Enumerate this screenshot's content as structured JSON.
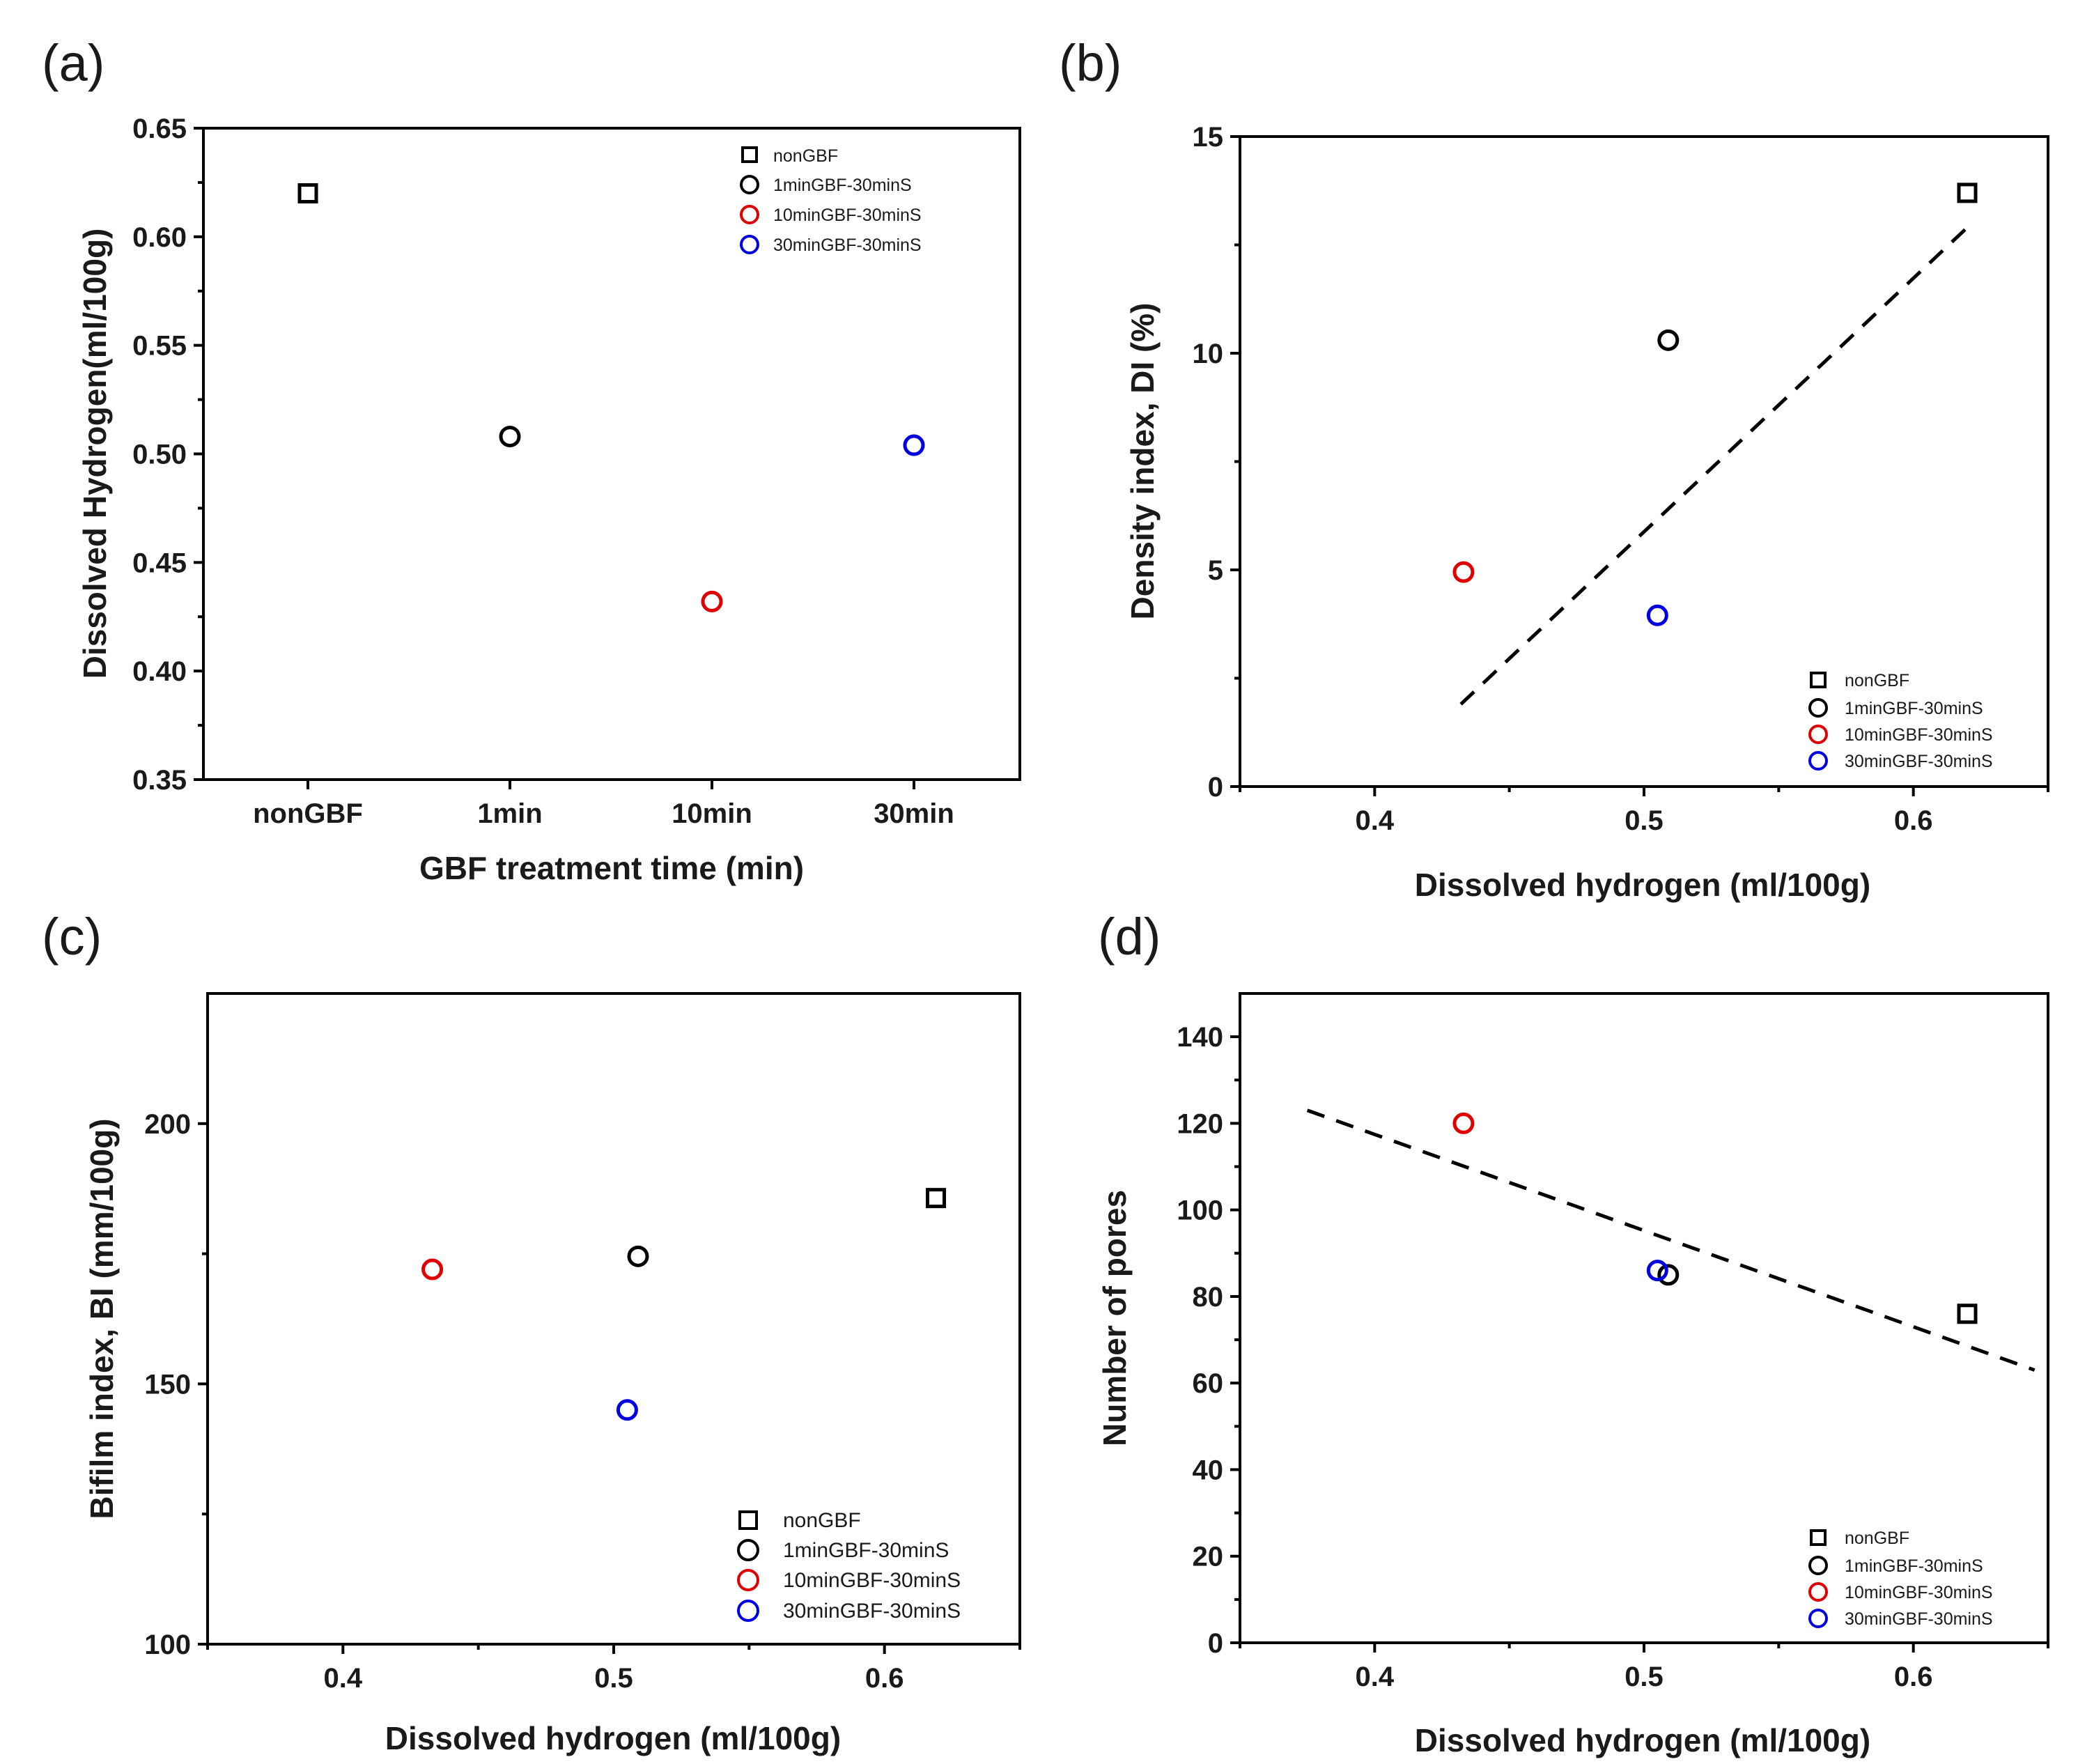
{
  "colors": {
    "nonGBF": "#000000",
    "m1": "#000000",
    "m10": "#e00000",
    "m30": "#0000e0",
    "fit": "#000000"
  },
  "chart_data": [
    {
      "panel": "(a)",
      "type": "scatter",
      "xlabel": "GBF treatment time (min)",
      "ylabel": "Dissolved Hydrogen(ml/100g)",
      "categories": [
        "nonGBF",
        "1min",
        "10min",
        "30min"
      ],
      "ylim": [
        0.35,
        0.65
      ],
      "yticks": [
        "0.35",
        "0.40",
        "0.45",
        "0.50",
        "0.55",
        "0.60",
        "0.65"
      ],
      "legend_position": "top-right",
      "series": [
        {
          "name": "nonGBF",
          "marker": "square",
          "colorKey": "nonGBF",
          "points": [
            {
              "x": "nonGBF",
              "y": 0.62
            }
          ]
        },
        {
          "name": "1minGBF-30minS",
          "marker": "circle",
          "colorKey": "m1",
          "points": [
            {
              "x": "1min",
              "y": 0.508
            }
          ]
        },
        {
          "name": "10minGBF-30minS",
          "marker": "circle",
          "colorKey": "m10",
          "points": [
            {
              "x": "10min",
              "y": 0.432
            }
          ]
        },
        {
          "name": "30minGBF-30minS",
          "marker": "circle",
          "colorKey": "m30",
          "points": [
            {
              "x": "30min",
              "y": 0.504
            }
          ]
        }
      ]
    },
    {
      "panel": "(b)",
      "type": "scatter",
      "xlabel": "Dissolved hydrogen (ml/100g)",
      "ylabel": "Density index, DI (%)",
      "xlim": [
        0.35,
        0.65
      ],
      "ylim": [
        0,
        15
      ],
      "xticks": [
        "0.4",
        "0.5",
        "0.6"
      ],
      "yticks": [
        "0",
        "5",
        "10",
        "15"
      ],
      "legend_position": "bottom-right",
      "fit_line": {
        "x": [
          0.432,
          0.62
        ],
        "y": [
          1.9,
          12.9
        ]
      },
      "series": [
        {
          "name": "nonGBF",
          "marker": "square",
          "colorKey": "nonGBF",
          "points": [
            {
              "x": 0.62,
              "y": 13.7
            }
          ]
        },
        {
          "name": "1minGBF-30minS",
          "marker": "circle",
          "colorKey": "m1",
          "points": [
            {
              "x": 0.509,
              "y": 10.3
            }
          ]
        },
        {
          "name": "10minGBF-30minS",
          "marker": "circle",
          "colorKey": "m10",
          "points": [
            {
              "x": 0.433,
              "y": 4.95
            }
          ]
        },
        {
          "name": "30minGBF-30minS",
          "marker": "circle",
          "colorKey": "m30",
          "points": [
            {
              "x": 0.505,
              "y": 3.95
            }
          ]
        }
      ]
    },
    {
      "panel": "(c)",
      "type": "scatter",
      "xlabel": "Dissolved hydrogen (ml/100g)",
      "ylabel": "Bifilm index, BI (mm/100g)",
      "xlim": [
        0.35,
        0.65
      ],
      "ylim": [
        100,
        225
      ],
      "xticks": [
        "0.4",
        "0.5",
        "0.6"
      ],
      "yticks": [
        "100",
        "150",
        "200"
      ],
      "legend_position": "bottom-right",
      "series": [
        {
          "name": "nonGBF",
          "marker": "square",
          "colorKey": "nonGBF",
          "points": [
            {
              "x": 0.619,
              "y": 185.7
            }
          ]
        },
        {
          "name": "1minGBF-30minS",
          "marker": "circle",
          "colorKey": "m1",
          "points": [
            {
              "x": 0.509,
              "y": 174.5
            }
          ]
        },
        {
          "name": "10minGBF-30minS",
          "marker": "circle",
          "colorKey": "m10",
          "points": [
            {
              "x": 0.433,
              "y": 172
            }
          ]
        },
        {
          "name": "30minGBF-30minS",
          "marker": "circle",
          "colorKey": "m30",
          "points": [
            {
              "x": 0.505,
              "y": 145
            }
          ]
        }
      ]
    },
    {
      "panel": "(d)",
      "type": "scatter",
      "xlabel": "Dissolved hydrogen (ml/100g)",
      "ylabel": "Number of pores",
      "xlim": [
        0.35,
        0.65
      ],
      "ylim": [
        0,
        150
      ],
      "xticks": [
        "0.4",
        "0.5",
        "0.6"
      ],
      "yticks": [
        "0",
        "20",
        "40",
        "60",
        "80",
        "100",
        "120",
        "140"
      ],
      "legend_position": "bottom-right",
      "fit_line": {
        "x": [
          0.375,
          0.645
        ],
        "y": [
          123,
          63
        ]
      },
      "series": [
        {
          "name": "nonGBF",
          "marker": "square",
          "colorKey": "nonGBF",
          "points": [
            {
              "x": 0.62,
              "y": 76
            }
          ]
        },
        {
          "name": "1minGBF-30minS",
          "marker": "circle",
          "colorKey": "m1",
          "points": [
            {
              "x": 0.509,
              "y": 85
            }
          ]
        },
        {
          "name": "10minGBF-30minS",
          "marker": "circle",
          "colorKey": "m10",
          "points": [
            {
              "x": 0.433,
              "y": 120
            }
          ]
        },
        {
          "name": "30minGBF-30minS",
          "marker": "circle",
          "colorKey": "m30",
          "points": [
            {
              "x": 0.505,
              "y": 86
            }
          ]
        }
      ]
    }
  ]
}
